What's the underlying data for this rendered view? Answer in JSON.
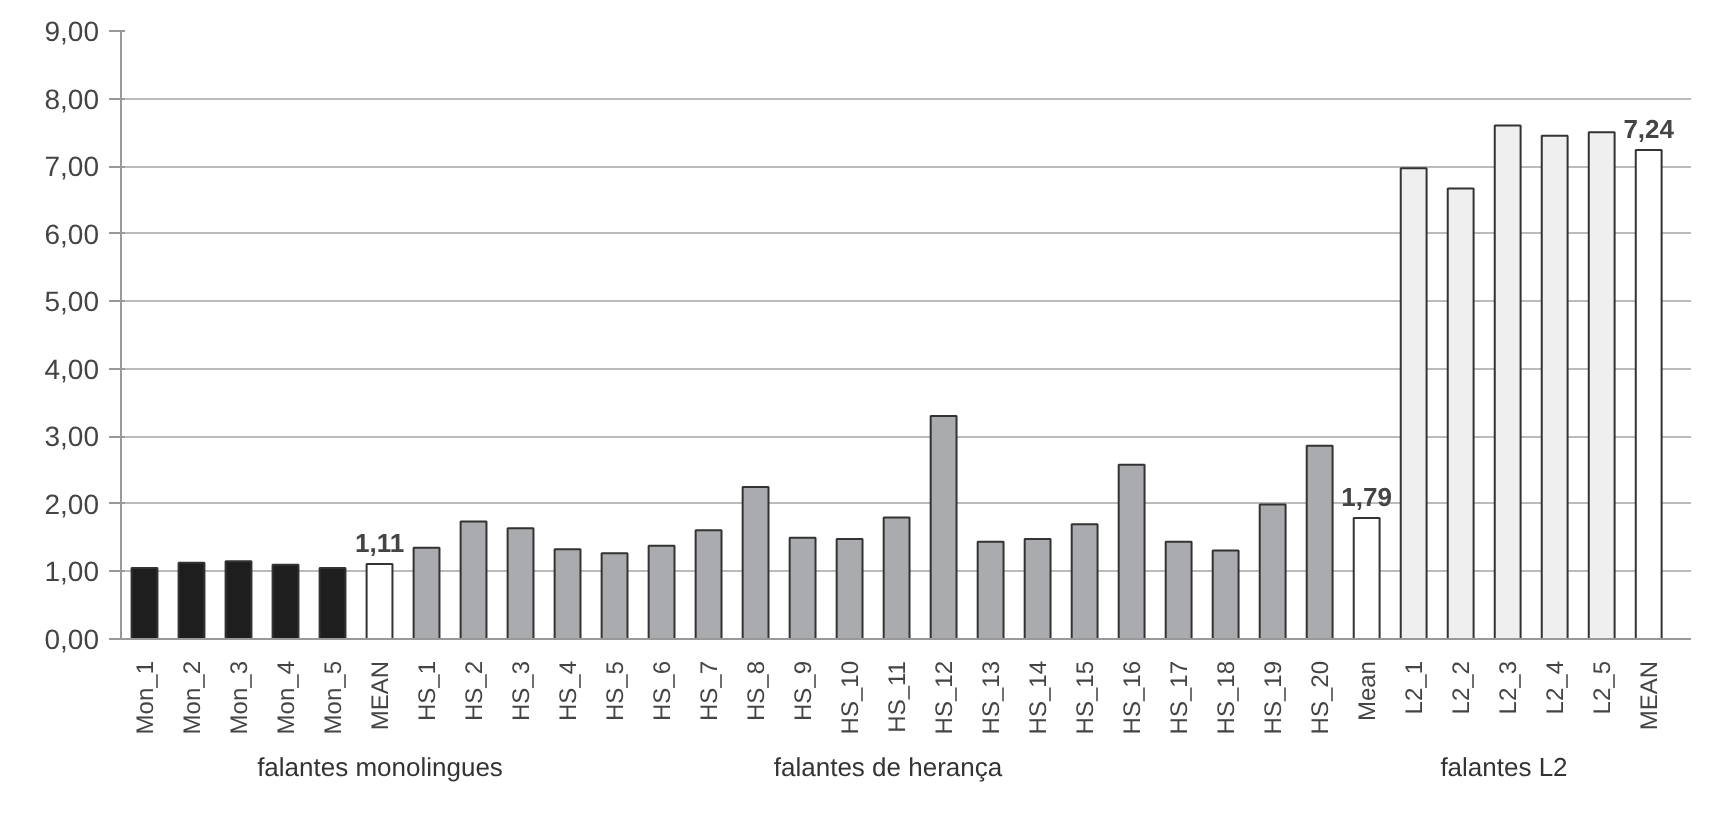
{
  "chart_data": {
    "type": "bar",
    "categories": [
      "Mon_1",
      "Mon_2",
      "Mon_3",
      "Mon_4",
      "Mon_5",
      "MEAN",
      "HS_1",
      "HS_2",
      "HS_3",
      "HS_4",
      "HS_5",
      "HS_6",
      "HS_7",
      "HS_8",
      "HS_9",
      "HS_10",
      "HS_11",
      "HS_12",
      "HS_13",
      "HS_14",
      "HS_15",
      "HS_16",
      "HS_17",
      "HS_18",
      "HS_19",
      "HS_20",
      "Mean",
      "L2_1",
      "L2_2",
      "L2_3",
      "L2_4",
      "L2_5",
      "MEAN"
    ],
    "values": [
      1.05,
      1.13,
      1.15,
      1.1,
      1.05,
      1.11,
      1.35,
      1.74,
      1.64,
      1.33,
      1.27,
      1.38,
      1.61,
      2.25,
      1.5,
      1.48,
      1.8,
      3.3,
      1.44,
      1.48,
      1.7,
      2.58,
      1.44,
      1.31,
      1.99,
      2.86,
      1.79,
      6.97,
      6.67,
      7.6,
      7.45,
      7.5,
      7.24
    ],
    "colors": [
      "#1e1e1e",
      "#1e1e1e",
      "#1e1e1e",
      "#1e1e1e",
      "#1e1e1e",
      "#ffffff",
      "#a9abae",
      "#a9abae",
      "#a9abae",
      "#a9abae",
      "#a9abae",
      "#a9abae",
      "#a9abae",
      "#a9abae",
      "#a9abae",
      "#a9abae",
      "#a9abae",
      "#a9abae",
      "#a9abae",
      "#a9abae",
      "#a9abae",
      "#a9abae",
      "#a9abae",
      "#a9abae",
      "#a9abae",
      "#a9abae",
      "#ffffff",
      "#efefef",
      "#efefef",
      "#efefef",
      "#efefef",
      "#efefef",
      "#ffffff"
    ],
    "value_labels": [
      null,
      null,
      null,
      null,
      null,
      "1,11",
      null,
      null,
      null,
      null,
      null,
      null,
      null,
      null,
      null,
      null,
      null,
      null,
      null,
      null,
      null,
      null,
      null,
      null,
      null,
      null,
      "1,79",
      null,
      null,
      null,
      null,
      null,
      "7,24"
    ],
    "ylim": [
      0,
      9
    ],
    "yticks": [
      {
        "value": 0,
        "label": "0,00"
      },
      {
        "value": 1,
        "label": "1,00"
      },
      {
        "value": 2,
        "label": "2,00"
      },
      {
        "value": 3,
        "label": "3,00"
      },
      {
        "value": 4,
        "label": "4,00"
      },
      {
        "value": 5,
        "label": "5,00"
      },
      {
        "value": 6,
        "label": "6,00"
      },
      {
        "value": 7,
        "label": "7,00"
      },
      {
        "value": 8,
        "label": "8,00"
      },
      {
        "value": 9,
        "label": "9,00"
      }
    ],
    "grid": "y",
    "annotations": [
      "falantes monolingues",
      "falantes de herança",
      "falantes L2"
    ]
  }
}
